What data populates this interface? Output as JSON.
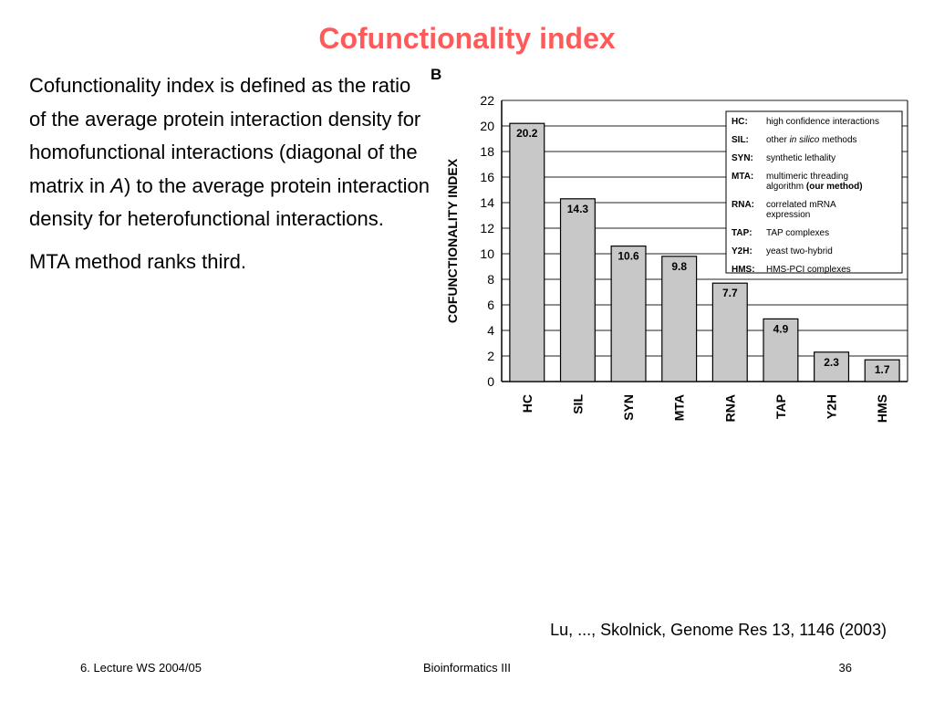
{
  "slide": {
    "title": "Cofunctionality index",
    "paragraph1_before": "Cofunctionality index is defined as the ratio of the average protein interaction density for homofunctional interactions (diagonal of the matrix in ",
    "paragraph1_italic": "A",
    "paragraph1_after": ") to the average protein interaction density for heterofunctional interactions.",
    "paragraph2": "MTA method ranks third.",
    "figure_letter": "B",
    "citation": "Lu, ..., Skolnick, Genome Res 13, 1146 (2003)",
    "footer_left": "6. Lecture WS 2004/05",
    "footer_center": "Bioinformatics III",
    "footer_right": "36"
  },
  "chart_data": {
    "type": "bar",
    "categories": [
      "HC",
      "SIL",
      "SYN",
      "MTA",
      "RNA",
      "TAP",
      "Y2H",
      "HMS"
    ],
    "values": [
      20.2,
      14.3,
      10.6,
      9.8,
      7.7,
      4.9,
      2.3,
      1.7
    ],
    "value_labels": [
      "20.2",
      "14.3",
      "10.6",
      "9.8",
      "7.7",
      "4.9",
      "2.3",
      "1.7"
    ],
    "ylabel": "COFUNCTIONALITY INDEX",
    "ylim": [
      0,
      22
    ],
    "yticks": [
      0,
      2,
      4,
      6,
      8,
      10,
      12,
      14,
      16,
      18,
      20,
      22
    ],
    "grid": true,
    "bar_color": "#c8c8c8",
    "legend_position": "top-right",
    "legend": [
      {
        "key": "HC:",
        "parts": [
          {
            "t": "high confidence interactions"
          }
        ]
      },
      {
        "key": "SIL:",
        "parts": [
          {
            "t": "other "
          },
          {
            "t": "in silico",
            "i": true
          },
          {
            "t": " methods"
          }
        ]
      },
      {
        "key": "SYN:",
        "parts": [
          {
            "t": "synthetic lethality"
          }
        ]
      },
      {
        "key": "MTA:",
        "parts": [
          {
            "t": "multimeric threading"
          }
        ],
        "parts2": [
          {
            "t": "algorithm "
          },
          {
            "t": "(our method)",
            "b": true
          }
        ]
      },
      {
        "key": "RNA:",
        "parts": [
          {
            "t": "correlated mRNA"
          }
        ],
        "parts2": [
          {
            "t": "expression"
          }
        ]
      },
      {
        "key": "TAP:",
        "parts": [
          {
            "t": "TAP complexes"
          }
        ]
      },
      {
        "key": "Y2H:",
        "parts": [
          {
            "t": "yeast two-hybrid"
          }
        ]
      },
      {
        "key": "HMS:",
        "parts": [
          {
            "t": "HMS-PCI complexes"
          }
        ]
      }
    ]
  }
}
